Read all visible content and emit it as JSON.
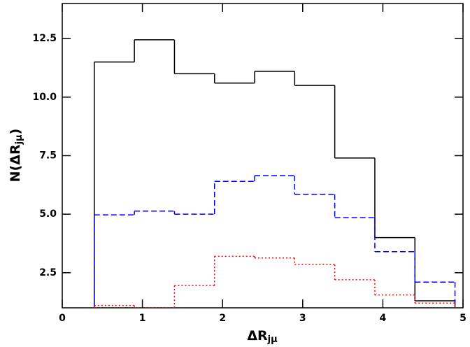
{
  "chart_data": {
    "type": "histogram",
    "xlabel": [
      "ΔR",
      "jμ"
    ],
    "ylabel": [
      "N(ΔR",
      "jμ",
      ")"
    ],
    "bins": [
      0.4,
      0.9,
      1.4,
      1.9,
      2.4,
      2.9,
      3.4,
      3.9,
      4.4,
      4.9
    ],
    "series": [
      {
        "color": "#000000",
        "line_style": "solid",
        "values": [
          11.5,
          12.45,
          11.0,
          10.6,
          11.1,
          10.5,
          7.4,
          4.0,
          1.3
        ]
      },
      {
        "color": "#0000ff",
        "line_style": "dashed",
        "values": [
          4.97,
          5.13,
          5.0,
          6.4,
          6.65,
          5.85,
          4.85,
          3.4,
          2.1
        ]
      },
      {
        "color": "#ff0000",
        "line_style": "dotted",
        "values": [
          1.1,
          1.0,
          1.95,
          3.2,
          3.13,
          2.85,
          2.2,
          1.55,
          1.2
        ]
      }
    ],
    "xlim": [
      0,
      5
    ],
    "xticks": [
      0,
      1,
      2,
      3,
      4,
      5
    ],
    "ylim": [
      1,
      14
    ],
    "yticks": [
      2.5,
      {
        "value": 5,
        "label": "5.0"
      },
      7.5,
      {
        "value": 10,
        "label": "10.0"
      },
      12.5
    ]
  }
}
